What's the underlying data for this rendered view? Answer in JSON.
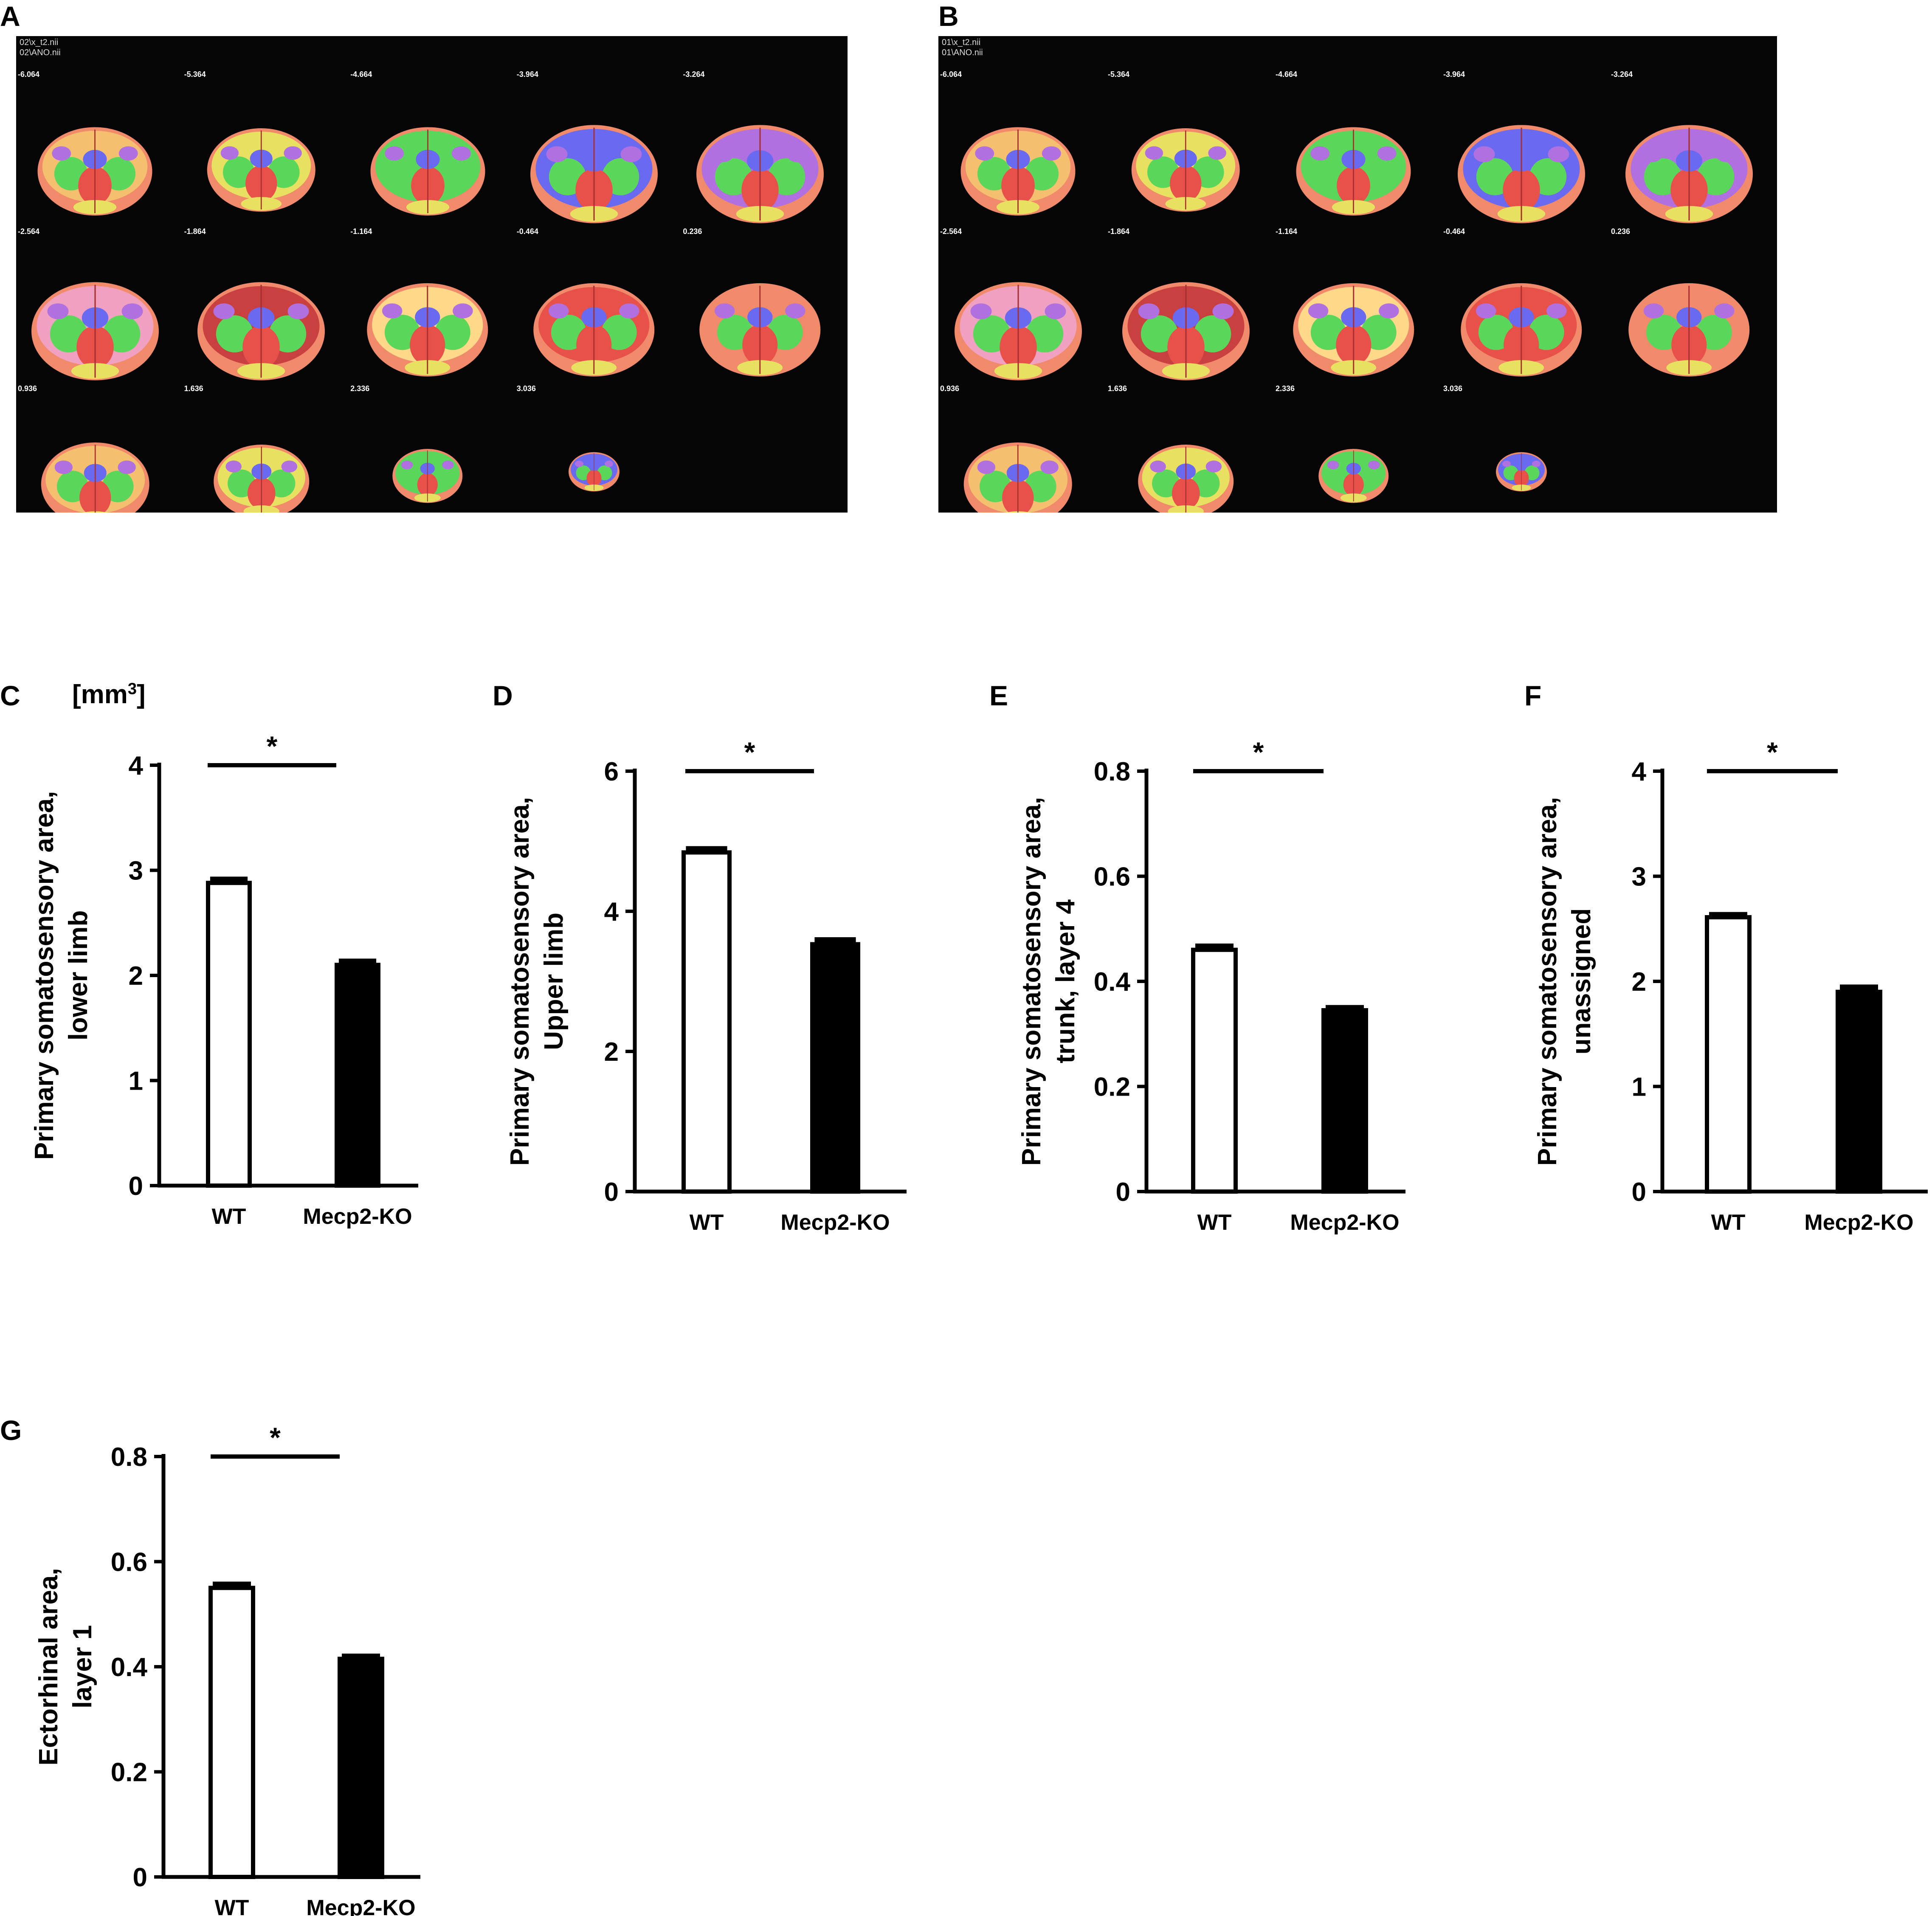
{
  "panels": {
    "A": {
      "letter": "A",
      "header_lines": [
        "02\\x_t2.nii",
        "02\\ANO.nii"
      ],
      "slice_labels": [
        "-6.064",
        "-5.364",
        "-4.664",
        "-3.964",
        "-3.264",
        "-2.564",
        "-1.864",
        "-1.164",
        "-0.464",
        "0.236",
        "0.936",
        "1.636",
        "2.336",
        "3.036"
      ]
    },
    "B": {
      "letter": "B",
      "header_lines": [
        "01\\x_t2.nii",
        "01\\ANO.nii"
      ],
      "slice_labels": [
        "-6.064",
        "-5.364",
        "-4.664",
        "-3.964",
        "-3.264",
        "-2.564",
        "-1.864",
        "-1.164",
        "-0.464",
        "0.236",
        "0.936",
        "1.636",
        "2.336",
        "3.036"
      ]
    }
  },
  "colors": {
    "wt_bar": "#ffffff",
    "ko_bar": "#000000",
    "axis": "#000000",
    "mri_bg": "#050505"
  },
  "chart_data": [
    {
      "id": "C",
      "letter": "C",
      "type": "bar",
      "unit_label": "[mm",
      "unit_sup": "3",
      "unit_close": "]",
      "categories": [
        "WT",
        "Mecp2-KO"
      ],
      "values": [
        2.88,
        2.1
      ],
      "errors": [
        0.06,
        0.06
      ],
      "ylabel_lines": [
        "Primary somatosensory area,",
        "lower limb"
      ],
      "ylim": [
        0,
        4
      ],
      "yticks": [
        "0",
        "1",
        "2",
        "3",
        "4"
      ],
      "significance": "*"
    },
    {
      "id": "D",
      "letter": "D",
      "type": "bar",
      "categories": [
        "WT",
        "Mecp2-KO"
      ],
      "values": [
        4.84,
        3.53
      ],
      "errors": [
        0.09,
        0.1
      ],
      "ylabel_lines": [
        "Primary somatosensory area,",
        "Upper limb"
      ],
      "ylim": [
        0,
        6
      ],
      "yticks": [
        "0",
        "2",
        "4",
        "6"
      ],
      "significance": "*"
    },
    {
      "id": "E",
      "letter": "E",
      "type": "bar",
      "categories": [
        "WT",
        "Mecp2-KO"
      ],
      "values": [
        0.46,
        0.345
      ],
      "errors": [
        0.012,
        0.01
      ],
      "ylabel_lines": [
        "Primary somatosensory area,",
        "trunk, layer 4"
      ],
      "ylim": [
        0,
        0.8
      ],
      "yticks": [
        "0",
        "0.2",
        "0.4",
        "0.6",
        "0.8"
      ],
      "significance": "*"
    },
    {
      "id": "F",
      "letter": "F",
      "type": "bar",
      "categories": [
        "WT",
        "Mecp2-KO"
      ],
      "values": [
        2.61,
        1.9
      ],
      "errors": [
        0.05,
        0.07
      ],
      "ylabel_lines": [
        "Primary somatosensory area,",
        "unassigned"
      ],
      "ylim": [
        0,
        4
      ],
      "yticks": [
        "0",
        "1",
        "2",
        "3",
        "4"
      ],
      "significance": "*"
    },
    {
      "id": "G",
      "letter": "G",
      "type": "bar",
      "categories": [
        "WT",
        "Mecp2-KO"
      ],
      "values": [
        0.55,
        0.415
      ],
      "errors": [
        0.012,
        0.01
      ],
      "ylabel_lines": [
        "Ectorhinal area,",
        "layer 1"
      ],
      "ylim": [
        0,
        0.8
      ],
      "yticks": [
        "0",
        "0.2",
        "0.4",
        "0.6",
        "0.8"
      ],
      "significance": "*"
    }
  ]
}
